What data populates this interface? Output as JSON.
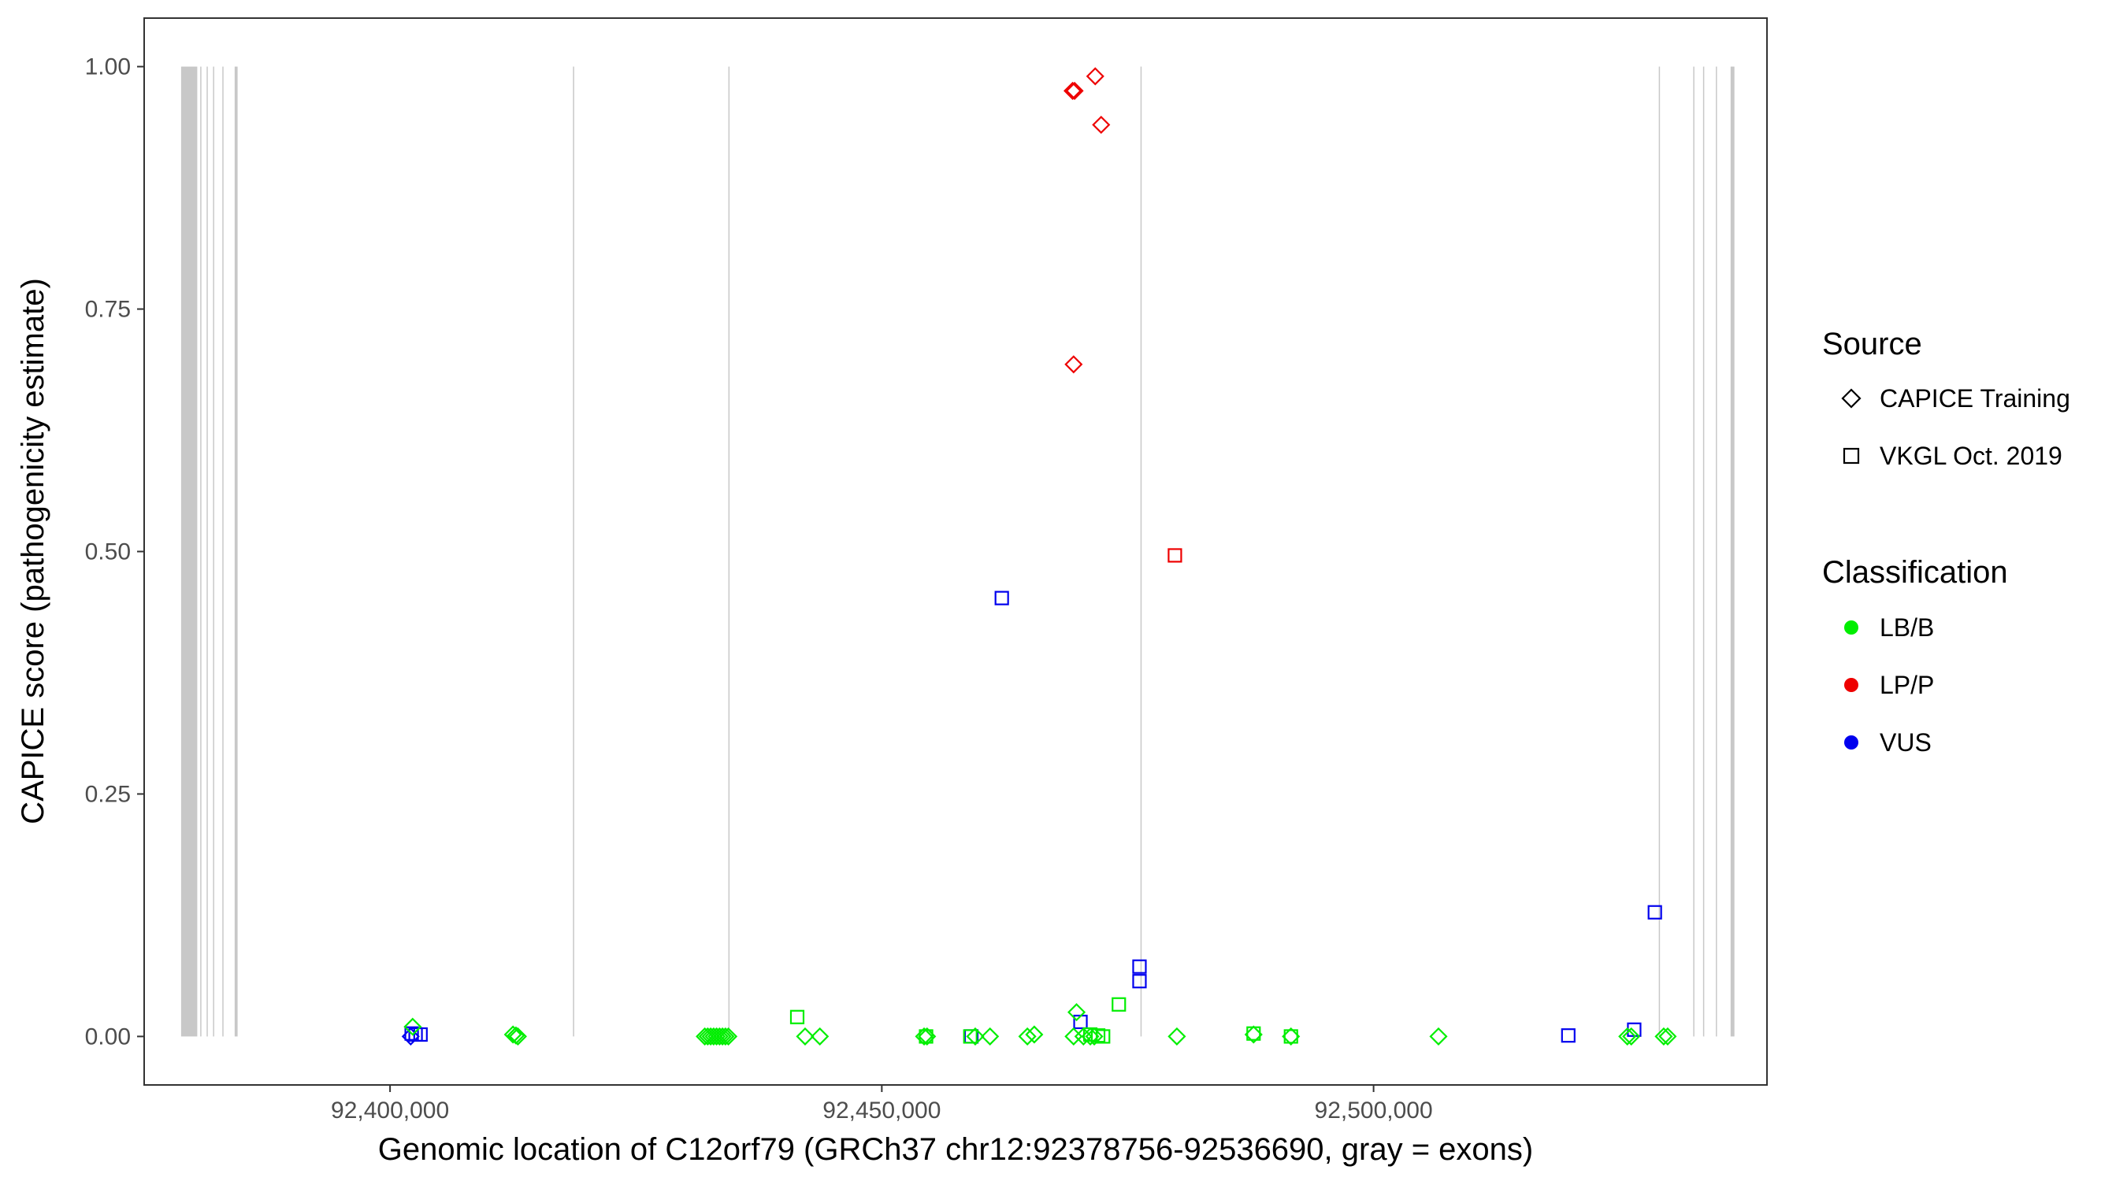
{
  "chart_data": {
    "type": "scatter",
    "title": "",
    "xlabel": "Genomic location of C12orf79 (GRCh37 chr12:92378756-92536690, gray = exons)",
    "ylabel": "CAPICE score (pathogenicity estimate)",
    "xlim": [
      92375000,
      92540000
    ],
    "ylim": [
      -0.05,
      1.05
    ],
    "x_ticks": [
      92400000,
      92450000,
      92500000
    ],
    "x_tick_labels": [
      "92,400,000",
      "92,450,000",
      "92,500,000"
    ],
    "y_ticks": [
      0,
      0.25,
      0.5,
      0.75,
      1.0
    ],
    "y_tick_labels": [
      "0.00",
      "0.25",
      "0.50",
      "0.75",
      "1.00"
    ],
    "grid": false,
    "legend_position": "right",
    "exons": [
      [
        92378756,
        92380400
      ],
      [
        92380700,
        92380800
      ],
      [
        92381350,
        92381450
      ],
      [
        92382000,
        92382100
      ],
      [
        92382950,
        92383050
      ],
      [
        92384200,
        92384500
      ],
      [
        92418600,
        92418700
      ],
      [
        92434400,
        92434500
      ],
      [
        92476300,
        92476400
      ],
      [
        92529000,
        92529100
      ],
      [
        92532500,
        92532600
      ],
      [
        92533500,
        92533600
      ],
      [
        92534800,
        92534900
      ],
      [
        92536300,
        92536690
      ]
    ],
    "legends": [
      {
        "title": "Source",
        "entries": [
          {
            "label": "CAPICE Training",
            "shape": "diamond"
          },
          {
            "label": "VKGL Oct. 2019",
            "shape": "square"
          }
        ]
      },
      {
        "title": "Classification",
        "entries": [
          {
            "label": "LB/B",
            "color": "#00ee00"
          },
          {
            "label": "LP/P",
            "color": "#ee0000"
          },
          {
            "label": "VUS",
            "color": "#0000ee"
          }
        ]
      }
    ],
    "colors": {
      "LB/B": "#00ee00",
      "LP/P": "#ee0000",
      "VUS": "#0000ee",
      "exon": "#c8c8c8",
      "axis_text": "#4d4d4d"
    },
    "series": [
      {
        "source": "CAPICE Training",
        "classification": "LP/P",
        "shape": "diamond",
        "color": "#ee0000",
        "x": [
          92469400,
          92469600,
          92471700,
          92472300,
          92469500
        ],
        "y": [
          0.975,
          0.975,
          0.99,
          0.94,
          0.693
        ]
      },
      {
        "source": "VKGL Oct. 2019",
        "classification": "LP/P",
        "shape": "square",
        "color": "#ee0000",
        "x": [
          92479800
        ],
        "y": [
          0.496
        ]
      },
      {
        "source": "VKGL Oct. 2019",
        "classification": "VUS",
        "shape": "square",
        "color": "#0000ee",
        "x": [
          92402200,
          92402600,
          92403100,
          92462200,
          92459100,
          92470200,
          92476200,
          92476200,
          92519800,
          92526500,
          92528600
        ],
        "y": [
          0.003,
          0.002,
          0.002,
          0.452,
          0.0,
          0.015,
          0.072,
          0.057,
          0.001,
          0.007,
          0.128
        ]
      },
      {
        "source": "CAPICE Training",
        "classification": "VUS",
        "shape": "diamond",
        "color": "#0000ee",
        "x": [
          92402100
        ],
        "y": [
          0.0
        ]
      },
      {
        "source": "CAPICE Training",
        "classification": "LB/B",
        "shape": "diamond",
        "color": "#00ee00",
        "x": [
          92402300,
          92412500,
          92412800,
          92413000,
          92432000,
          92432300,
          92432600,
          92432900,
          92433200,
          92433500,
          92433800,
          92434100,
          92434400,
          92442200,
          92443700,
          92454300,
          92454600,
          92459500,
          92461000,
          92464800,
          92465500,
          92469800,
          92469500,
          92470500,
          92471200,
          92471600,
          92480000,
          92487800,
          92491600,
          92506600,
          92525800,
          92526200,
          92529500,
          92529900
        ],
        "y": [
          0.01,
          0.002,
          0.001,
          0.0,
          0.0,
          0.0,
          0.0,
          0.0,
          0.0,
          0.0,
          0.0,
          0.0,
          0.0,
          0.0,
          0.0,
          0.0,
          0.0,
          0.0,
          0.0,
          0.0,
          0.002,
          0.025,
          0.0,
          0.0,
          0.0,
          0.0,
          0.0,
          0.002,
          0.0,
          0.0,
          0.0,
          0.0,
          0.0,
          0.0
        ]
      },
      {
        "source": "VKGL Oct. 2019",
        "classification": "LB/B",
        "shape": "square",
        "color": "#00ee00",
        "x": [
          92441400,
          92454500,
          92459000,
          92471200,
          92472000,
          92472500,
          92474100,
          92487800,
          92491600
        ],
        "y": [
          0.02,
          0.0,
          0.0,
          0.002,
          0.001,
          0.0,
          0.033,
          0.003,
          0.0
        ]
      }
    ]
  }
}
